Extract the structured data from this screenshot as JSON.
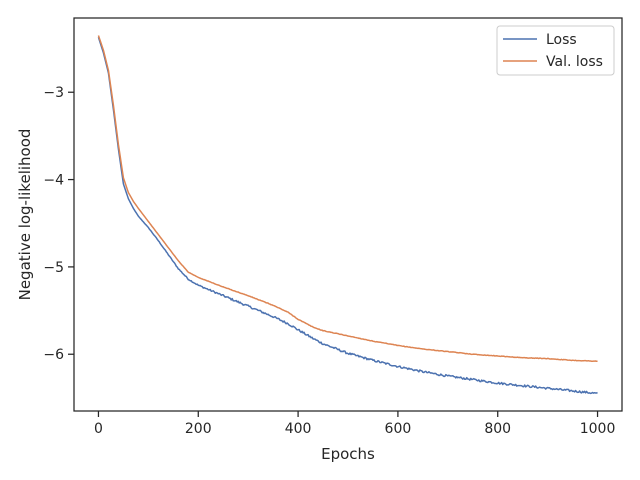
{
  "chart_data": {
    "type": "line",
    "title": "",
    "xlabel": "Epochs",
    "ylabel": "Negative log-likelihood",
    "xlim": [
      -49,
      1049
    ],
    "ylim": [
      -6.65,
      -2.15
    ],
    "xticks": [
      0,
      200,
      400,
      600,
      800,
      1000
    ],
    "yticks": [
      -3,
      -4,
      -5,
      -6
    ],
    "xtick_labels": [
      "0",
      "200",
      "400",
      "600",
      "800",
      "1000"
    ],
    "ytick_labels": [
      "−3",
      "−4",
      "−5",
      "−6"
    ],
    "grid": false,
    "legend_position": "top-right",
    "series": [
      {
        "name": "Loss",
        "color": "#4c72b0",
        "noise": 0.012,
        "points": [
          [
            0,
            -2.37
          ],
          [
            10,
            -2.55
          ],
          [
            20,
            -2.78
          ],
          [
            30,
            -3.2
          ],
          [
            40,
            -3.65
          ],
          [
            50,
            -4.05
          ],
          [
            60,
            -4.22
          ],
          [
            70,
            -4.33
          ],
          [
            80,
            -4.42
          ],
          [
            100,
            -4.55
          ],
          [
            120,
            -4.7
          ],
          [
            140,
            -4.86
          ],
          [
            160,
            -5.02
          ],
          [
            180,
            -5.14
          ],
          [
            200,
            -5.21
          ],
          [
            250,
            -5.33
          ],
          [
            300,
            -5.45
          ],
          [
            350,
            -5.57
          ],
          [
            380,
            -5.65
          ],
          [
            400,
            -5.72
          ],
          [
            430,
            -5.82
          ],
          [
            450,
            -5.88
          ],
          [
            500,
            -5.99
          ],
          [
            550,
            -6.07
          ],
          [
            600,
            -6.14
          ],
          [
            650,
            -6.2
          ],
          [
            700,
            -6.25
          ],
          [
            750,
            -6.29
          ],
          [
            800,
            -6.33
          ],
          [
            850,
            -6.36
          ],
          [
            900,
            -6.39
          ],
          [
            950,
            -6.42
          ],
          [
            1000,
            -6.45
          ]
        ]
      },
      {
        "name": "Val. loss",
        "color": "#dd8452",
        "noise": 0.003,
        "points": [
          [
            0,
            -2.35
          ],
          [
            10,
            -2.52
          ],
          [
            20,
            -2.75
          ],
          [
            30,
            -3.15
          ],
          [
            40,
            -3.6
          ],
          [
            50,
            -3.98
          ],
          [
            60,
            -4.15
          ],
          [
            70,
            -4.25
          ],
          [
            80,
            -4.33
          ],
          [
            100,
            -4.48
          ],
          [
            120,
            -4.63
          ],
          [
            140,
            -4.78
          ],
          [
            160,
            -4.93
          ],
          [
            180,
            -5.06
          ],
          [
            200,
            -5.12
          ],
          [
            250,
            -5.23
          ],
          [
            300,
            -5.33
          ],
          [
            350,
            -5.44
          ],
          [
            380,
            -5.52
          ],
          [
            400,
            -5.6
          ],
          [
            430,
            -5.69
          ],
          [
            450,
            -5.73
          ],
          [
            500,
            -5.79
          ],
          [
            550,
            -5.85
          ],
          [
            600,
            -5.9
          ],
          [
            650,
            -5.94
          ],
          [
            700,
            -5.97
          ],
          [
            750,
            -6.0
          ],
          [
            800,
            -6.02
          ],
          [
            850,
            -6.04
          ],
          [
            900,
            -6.05
          ],
          [
            950,
            -6.07
          ],
          [
            1000,
            -6.08
          ]
        ]
      }
    ]
  }
}
